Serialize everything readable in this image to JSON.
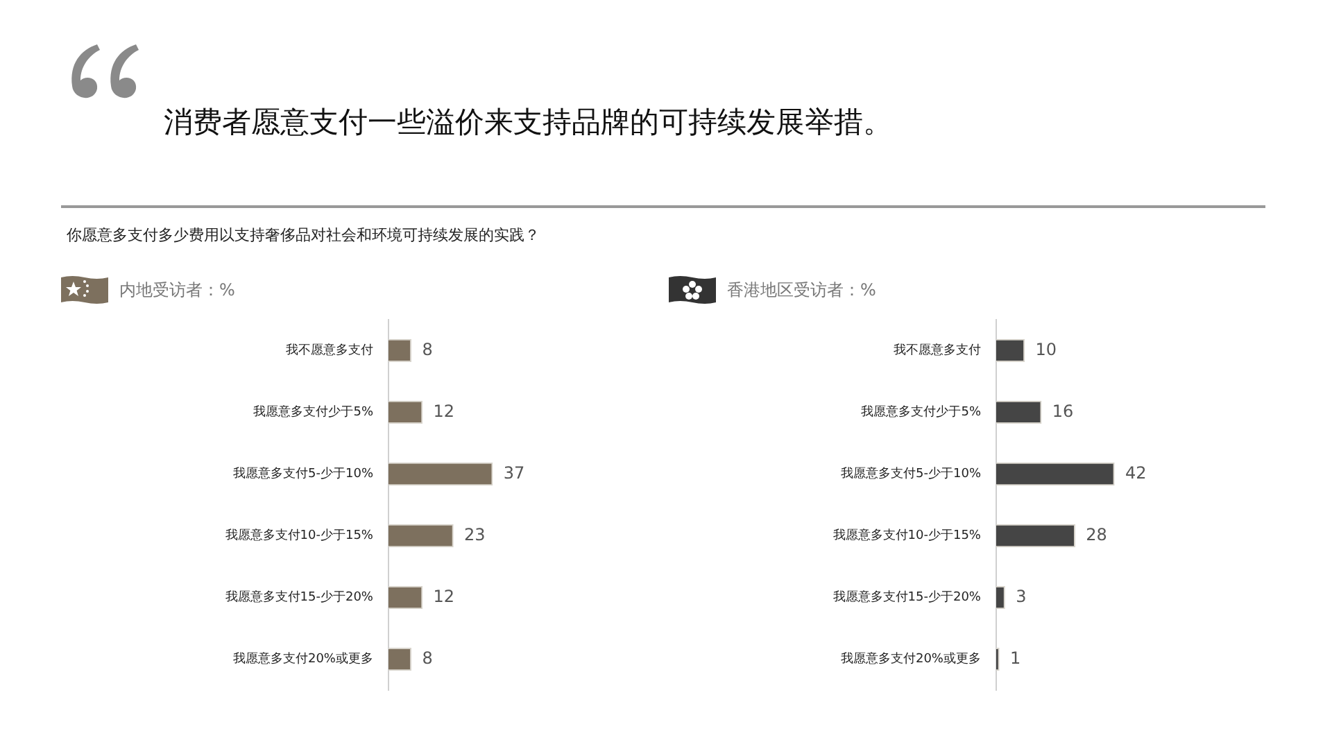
{
  "chart_data": [
    {
      "type": "bar",
      "orientation": "horizontal",
      "data_labels": true,
      "annotations": [
        "消费者愿意支付一些溢价来支持品牌的可持续发展举措。",
        "你愿意多支付多少费用以支持奢侈品对社会和环境可持续发展的实践？"
      ],
      "title": "内地受访者：%",
      "categories": [
        "我不愿意多支付",
        "我愿意多支付少于5%",
        "我愿意多支付5-少于10%",
        "我愿意多支付10-少于15%",
        "我愿意多支付15-少于20%",
        "我愿意多支付20%或更多"
      ],
      "series": [
        {
          "color": "#7d705e",
          "values": [
            8,
            12,
            37,
            23,
            12,
            8
          ]
        }
      ]
    },
    {
      "type": "bar",
      "orientation": "horizontal",
      "data_labels": true,
      "title": "香港地区受访者：%",
      "categories": [
        "我不愿意多支付",
        "我愿意多支付少于5%",
        "我愿意多支付5-少于10%",
        "我愿意多支付10-少于15%",
        "我愿意多支付15-少于20%",
        "我愿意多支付20%或更多"
      ],
      "series": [
        {
          "color": "#454545",
          "values": [
            10,
            16,
            42,
            28,
            3,
            1
          ]
        }
      ]
    }
  ]
}
